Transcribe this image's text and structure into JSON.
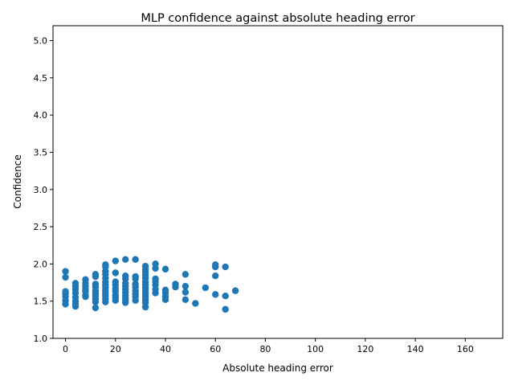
{
  "chart_data": {
    "type": "scatter",
    "title": "MLP confidence against absolute heading error",
    "xlabel": "Absolute heading error",
    "ylabel": "Confidence",
    "xlim": [
      -5,
      175
    ],
    "ylim": [
      1.0,
      5.2
    ],
    "xticks": [
      0,
      20,
      40,
      60,
      80,
      100,
      120,
      140,
      160
    ],
    "yticks": [
      1.0,
      1.5,
      2.0,
      2.5,
      3.0,
      3.5,
      4.0,
      4.5,
      5.0
    ],
    "xtick_labels": [
      "0",
      "20",
      "40",
      "60",
      "80",
      "100",
      "120",
      "140",
      "160"
    ],
    "ytick_labels": [
      "1.0",
      "1.5",
      "2.0",
      "2.5",
      "3.0",
      "3.5",
      "4.0",
      "4.5",
      "5.0"
    ],
    "grid": false,
    "legend": "none",
    "marker_color": "#1f77b4",
    "series": [
      {
        "points": [
          [
            0,
            1.9
          ],
          [
            0,
            1.82
          ],
          [
            0,
            1.63
          ],
          [
            0,
            1.6
          ],
          [
            0,
            1.56
          ],
          [
            0,
            1.51
          ],
          [
            0,
            1.46
          ],
          [
            4,
            1.74
          ],
          [
            4,
            1.7
          ],
          [
            4,
            1.66
          ],
          [
            4,
            1.61
          ],
          [
            4,
            1.55
          ],
          [
            4,
            1.5
          ],
          [
            4,
            1.46
          ],
          [
            4,
            1.43
          ],
          [
            8,
            1.79
          ],
          [
            8,
            1.74
          ],
          [
            8,
            1.7
          ],
          [
            8,
            1.66
          ],
          [
            8,
            1.63
          ],
          [
            8,
            1.58
          ],
          [
            8,
            1.56
          ],
          [
            12,
            1.86
          ],
          [
            12,
            1.83
          ],
          [
            12,
            1.73
          ],
          [
            12,
            1.69
          ],
          [
            12,
            1.64
          ],
          [
            12,
            1.6
          ],
          [
            12,
            1.57
          ],
          [
            12,
            1.53
          ],
          [
            12,
            1.49
          ],
          [
            12,
            1.41
          ],
          [
            16,
            1.99
          ],
          [
            16,
            1.96
          ],
          [
            16,
            1.9
          ],
          [
            16,
            1.86
          ],
          [
            16,
            1.81
          ],
          [
            16,
            1.76
          ],
          [
            16,
            1.72
          ],
          [
            16,
            1.68
          ],
          [
            16,
            1.64
          ],
          [
            16,
            1.6
          ],
          [
            16,
            1.57
          ],
          [
            16,
            1.53
          ],
          [
            16,
            1.49
          ],
          [
            20,
            2.04
          ],
          [
            20,
            1.88
          ],
          [
            20,
            1.76
          ],
          [
            20,
            1.72
          ],
          [
            20,
            1.67
          ],
          [
            20,
            1.63
          ],
          [
            20,
            1.58
          ],
          [
            20,
            1.55
          ],
          [
            20,
            1.51
          ],
          [
            24,
            2.06
          ],
          [
            24,
            1.84
          ],
          [
            24,
            1.8
          ],
          [
            24,
            1.74
          ],
          [
            24,
            1.7
          ],
          [
            24,
            1.66
          ],
          [
            24,
            1.62
          ],
          [
            24,
            1.58
          ],
          [
            24,
            1.54
          ],
          [
            24,
            1.51
          ],
          [
            24,
            1.48
          ],
          [
            28,
            2.06
          ],
          [
            28,
            1.83
          ],
          [
            28,
            1.8
          ],
          [
            28,
            1.73
          ],
          [
            28,
            1.69
          ],
          [
            28,
            1.64
          ],
          [
            28,
            1.6
          ],
          [
            28,
            1.56
          ],
          [
            28,
            1.51
          ],
          [
            32,
            1.97
          ],
          [
            32,
            1.93
          ],
          [
            32,
            1.89
          ],
          [
            32,
            1.85
          ],
          [
            32,
            1.81
          ],
          [
            32,
            1.76
          ],
          [
            32,
            1.72
          ],
          [
            32,
            1.68
          ],
          [
            32,
            1.64
          ],
          [
            32,
            1.6
          ],
          [
            32,
            1.56
          ],
          [
            32,
            1.52
          ],
          [
            32,
            1.48
          ],
          [
            32,
            1.42
          ],
          [
            36,
            2.0
          ],
          [
            36,
            1.94
          ],
          [
            36,
            1.8
          ],
          [
            36,
            1.76
          ],
          [
            36,
            1.72
          ],
          [
            36,
            1.66
          ],
          [
            36,
            1.61
          ],
          [
            40,
            1.93
          ],
          [
            40,
            1.65
          ],
          [
            40,
            1.61
          ],
          [
            40,
            1.56
          ],
          [
            40,
            1.52
          ],
          [
            44,
            1.73
          ],
          [
            44,
            1.69
          ],
          [
            48,
            1.86
          ],
          [
            48,
            1.7
          ],
          [
            48,
            1.62
          ],
          [
            48,
            1.52
          ],
          [
            52,
            1.47
          ],
          [
            56,
            1.68
          ],
          [
            60,
            1.99
          ],
          [
            60,
            1.96
          ],
          [
            60,
            1.84
          ],
          [
            60,
            1.59
          ],
          [
            64,
            1.96
          ],
          [
            64,
            1.57
          ],
          [
            64,
            1.39
          ],
          [
            68,
            1.64
          ]
        ]
      }
    ]
  }
}
